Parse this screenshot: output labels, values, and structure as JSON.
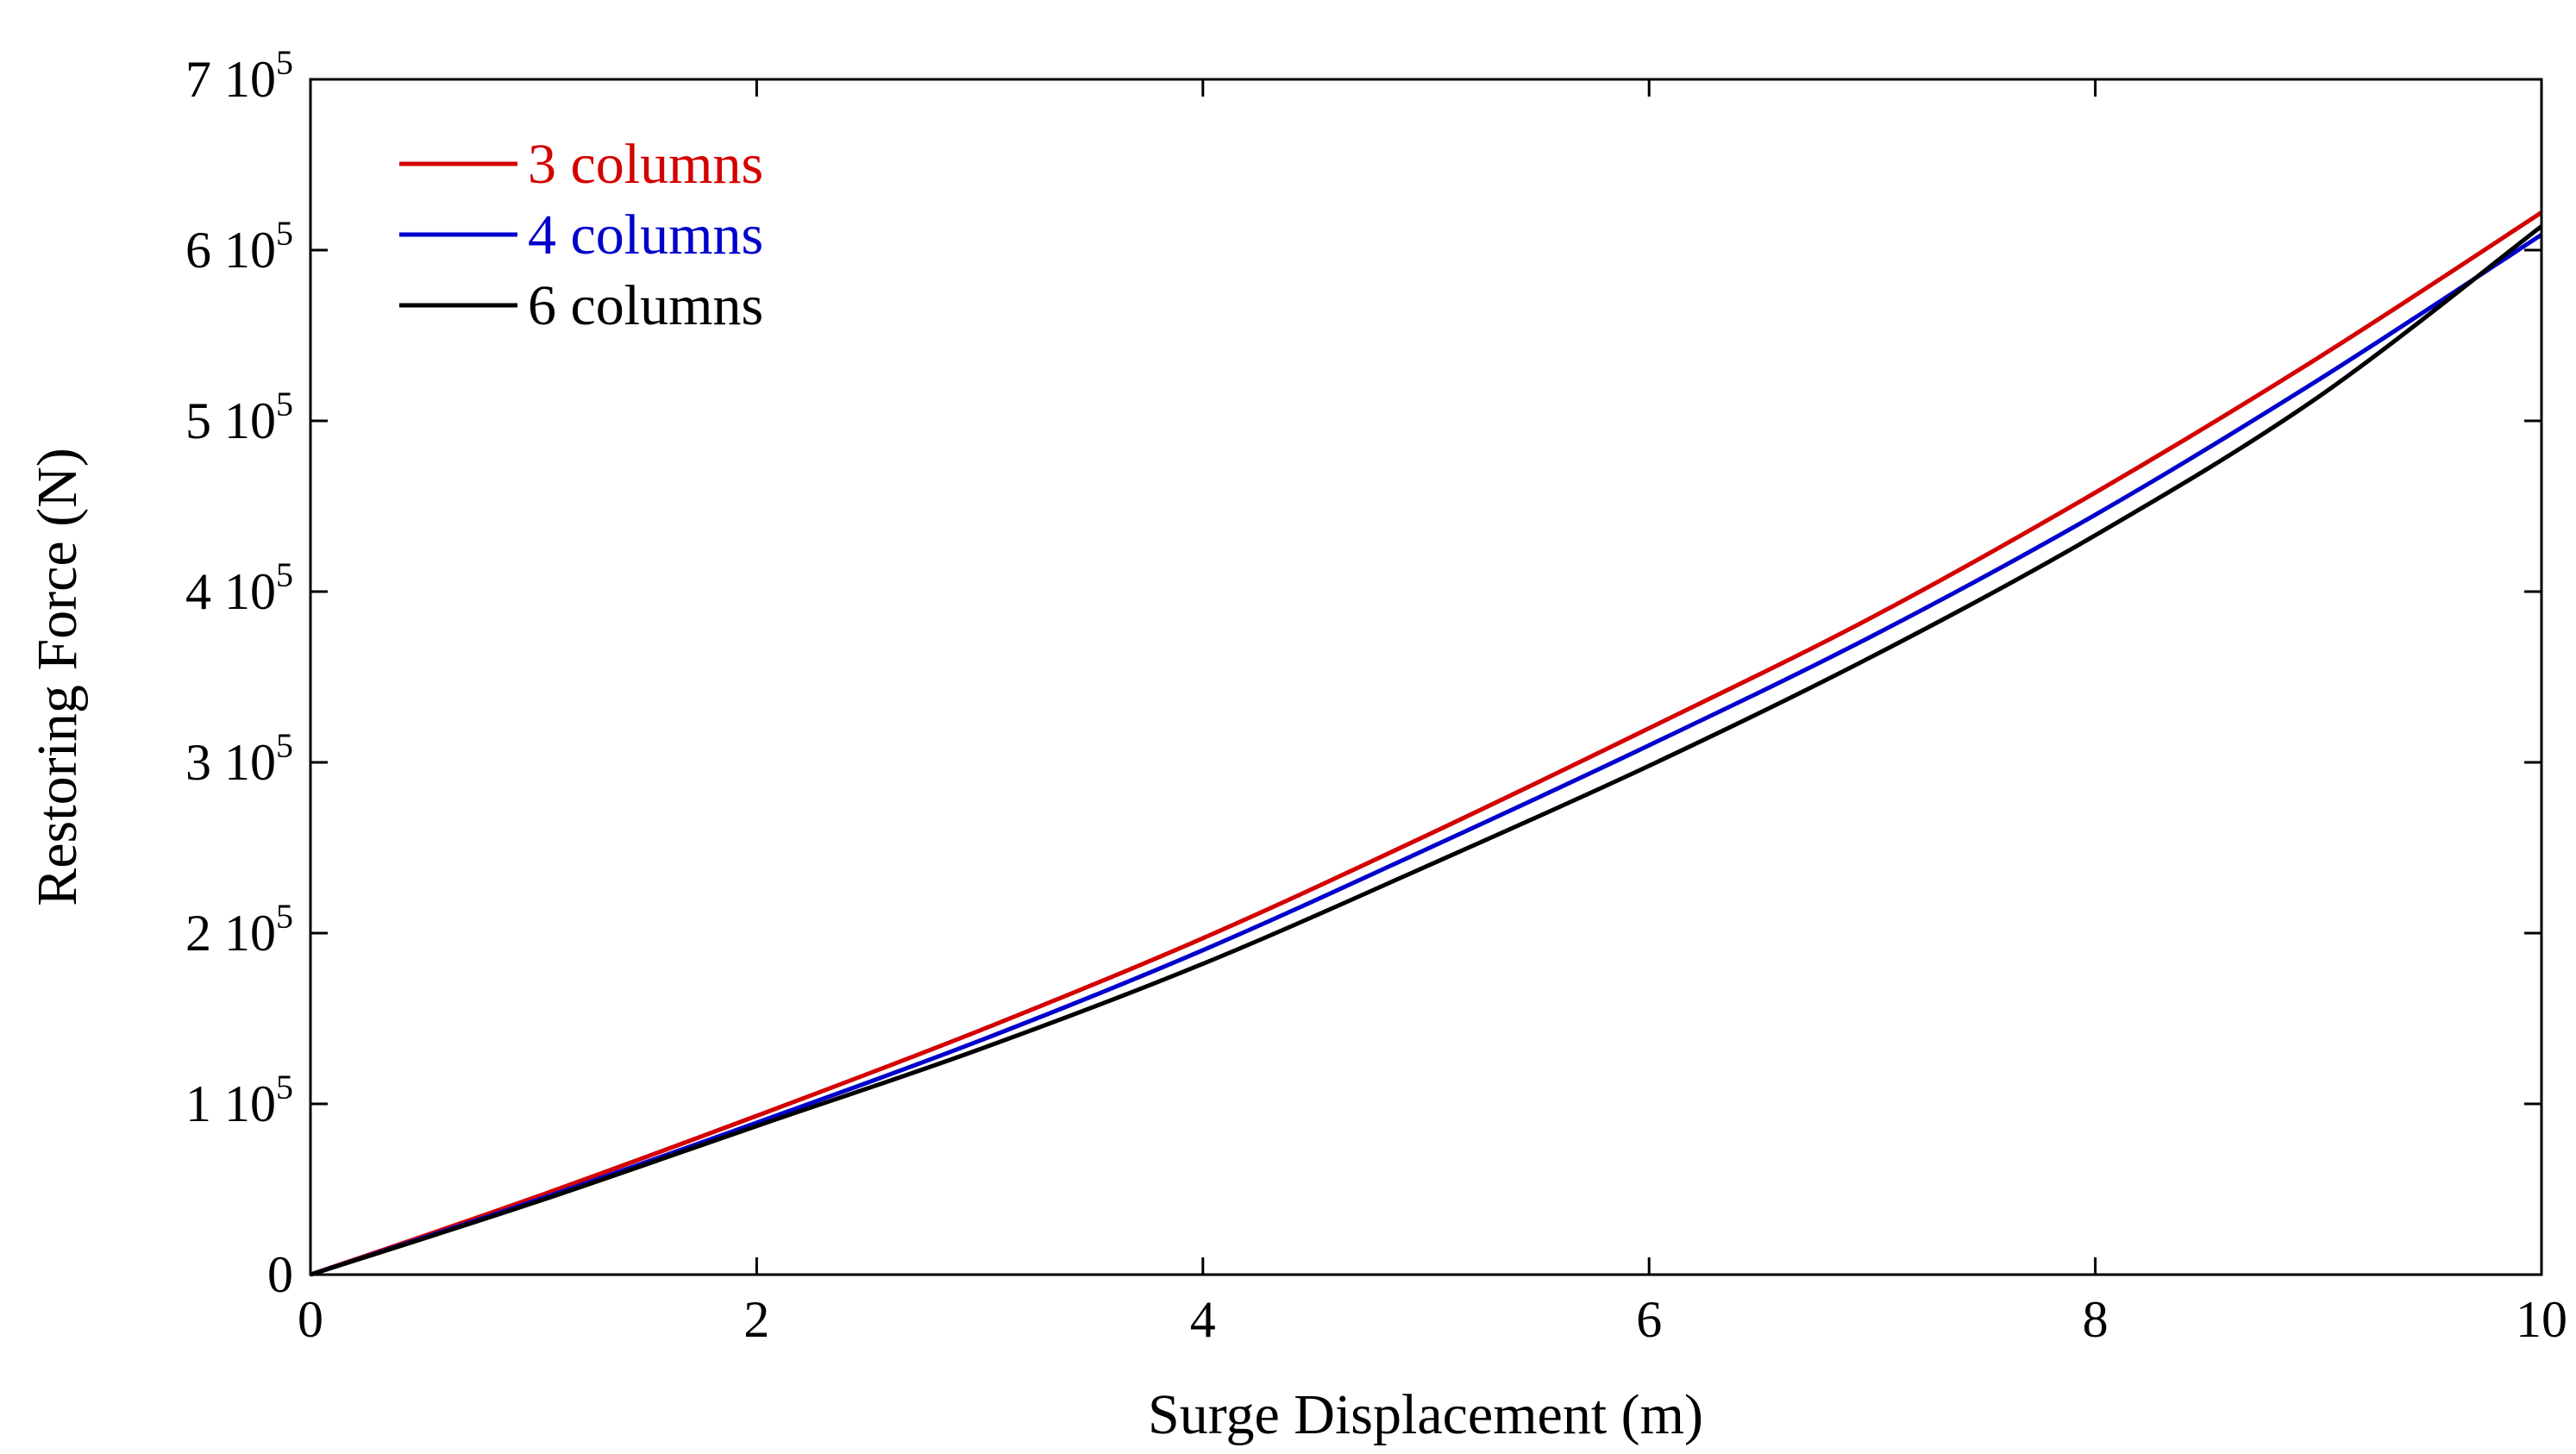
{
  "chart_data": {
    "type": "line",
    "title": "",
    "xlabel": "Surge Displacement (m)",
    "ylabel": "Restoring Force (N)",
    "xlim": [
      0,
      10
    ],
    "ylim": [
      0,
      700000
    ],
    "x_ticks": [
      {
        "value": 0,
        "label": "0"
      },
      {
        "value": 2,
        "label": "2"
      },
      {
        "value": 4,
        "label": "4"
      },
      {
        "value": 6,
        "label": "6"
      },
      {
        "value": 8,
        "label": "8"
      },
      {
        "value": 10,
        "label": "10"
      }
    ],
    "y_ticks": [
      {
        "value": 0,
        "mantissa": "0",
        "exponent": ""
      },
      {
        "value": 100000,
        "mantissa": "1 10",
        "exponent": "5"
      },
      {
        "value": 200000,
        "mantissa": "2 10",
        "exponent": "5"
      },
      {
        "value": 300000,
        "mantissa": "3 10",
        "exponent": "5"
      },
      {
        "value": 400000,
        "mantissa": "4 10",
        "exponent": "5"
      },
      {
        "value": 500000,
        "mantissa": "5 10",
        "exponent": "5"
      },
      {
        "value": 600000,
        "mantissa": "6 10",
        "exponent": "5"
      },
      {
        "value": 700000,
        "mantissa": "7 10",
        "exponent": "5"
      }
    ],
    "grid": false,
    "legend_position": "top-left",
    "x": [
      0,
      1,
      2,
      3,
      4,
      5,
      6,
      7,
      8,
      9,
      10
    ],
    "series": [
      {
        "name": "3 columns",
        "color": "#d40000",
        "values": [
          0,
          45000,
          93000,
          143000,
          197000,
          257000,
          320000,
          385000,
          458000,
          537000,
          622000
        ]
      },
      {
        "name": "4 columns",
        "color": "#0000cc",
        "values": [
          0,
          43000,
          89000,
          137000,
          190000,
          249000,
          310000,
          374000,
          445000,
          524000,
          609000
        ]
      },
      {
        "name": "6 columns",
        "color": "#000000",
        "values": [
          0,
          42000,
          87000,
          132000,
          182000,
          239000,
          298000,
          362000,
          433000,
          514000,
          614000
        ]
      }
    ]
  }
}
